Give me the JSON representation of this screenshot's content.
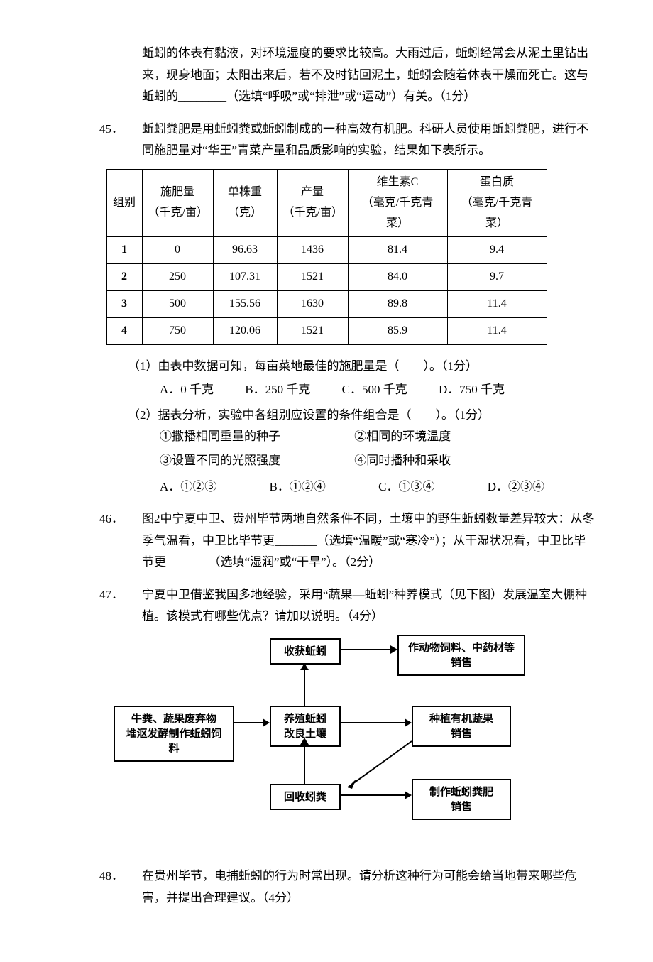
{
  "passage_44": "蚯蚓的体表有黏液，对环境湿度的要求比较高。大雨过后，蚯蚓经常会从泥土里钻出来，现身地面；太阳出来后，若不及时钻回泥土，蚯蚓会随着体表干燥而死亡。这与蚯蚓的________（选填“呼吸”或“排泄”或“运动”）有关。（1分）",
  "q45": {
    "num": "45．",
    "text": "蚯蚓粪肥是用蚯蚓粪或蚯蚓制成的一种高效有机肥。科研人员使用蚯蚓粪肥，进行不同施肥量对“华王”青菜产量和品质影响的实验，结果如下表所示。",
    "table": {
      "headers": [
        "组别",
        "施肥量\n（千克/亩）",
        "单株重\n（克）",
        "产量\n（千克/亩）",
        "维生素C\n（毫克/千克青菜）",
        "蛋白质\n（毫克/千克青菜）"
      ],
      "rows": [
        [
          "1",
          "0",
          "96.63",
          "1436",
          "81.4",
          "9.4"
        ],
        [
          "2",
          "250",
          "107.31",
          "1521",
          "84.0",
          "9.7"
        ],
        [
          "3",
          "500",
          "155.56",
          "1630",
          "89.8",
          "11.4"
        ],
        [
          "4",
          "750",
          "120.06",
          "1521",
          "85.9",
          "11.4"
        ]
      ],
      "col_widths": [
        "50px",
        "100px",
        "90px",
        "100px",
        "140px",
        "140px"
      ]
    },
    "sub1": {
      "label": "（1）由表中数据可知，每亩菜地最佳的施肥量是（　　）。（1分）",
      "opts": [
        "A．0 千克",
        "B．250 千克",
        "C．500 千克",
        "D．750 千克"
      ]
    },
    "sub2": {
      "label": "（2）据表分析，实验中各组别应设置的条件组合是（　　）。（1分）",
      "conditions": [
        "①撒播相同重量的种子",
        "②相同的环境温度",
        "③设置不同的光照强度",
        "④同时播种和采收"
      ],
      "opts": [
        "A．①②③",
        "B．①②④",
        "C．①③④",
        "D．②③④"
      ]
    }
  },
  "q46": {
    "num": "46．",
    "text": "图2中宁夏中卫、贵州毕节两地自然条件不同，土壤中的野生蚯蚓数量差异较大：从冬季气温看，中卫比毕节更_______（选填“温暖”或“寒冷”）；从干湿状况看，中卫比毕节更_______（选填“湿润”或“干旱”）。（2分）"
  },
  "q47": {
    "num": "47．",
    "text": "宁夏中卫借鉴我国多地经验，采用“蔬果—蚯蚓”种养模式（见下图）发展温室大棚种植。该模式有哪些优点？请加以说明。（4分）",
    "flow": {
      "boxes": {
        "harvest": "收获蚯蚓",
        "feed_sell": "作动物饲料、中药材等\n销售",
        "compost": "牛粪、蔬果废弃物\n堆沤发酵制作蚯蚓饲料",
        "raise": "养殖蚯蚓\n改良土壤",
        "veg_sell": "种植有机蔬果\n销售",
        "recycle": "回收蚓粪",
        "fert_sell": "制作蚯蚓粪肥\n销售"
      }
    }
  },
  "q48": {
    "num": "48．",
    "text": "在贵州毕节，电捕蚯蚓的行为时常出现。请分析这种行为可能会给当地带来哪些危害，并提出合理建议。（4分）"
  }
}
